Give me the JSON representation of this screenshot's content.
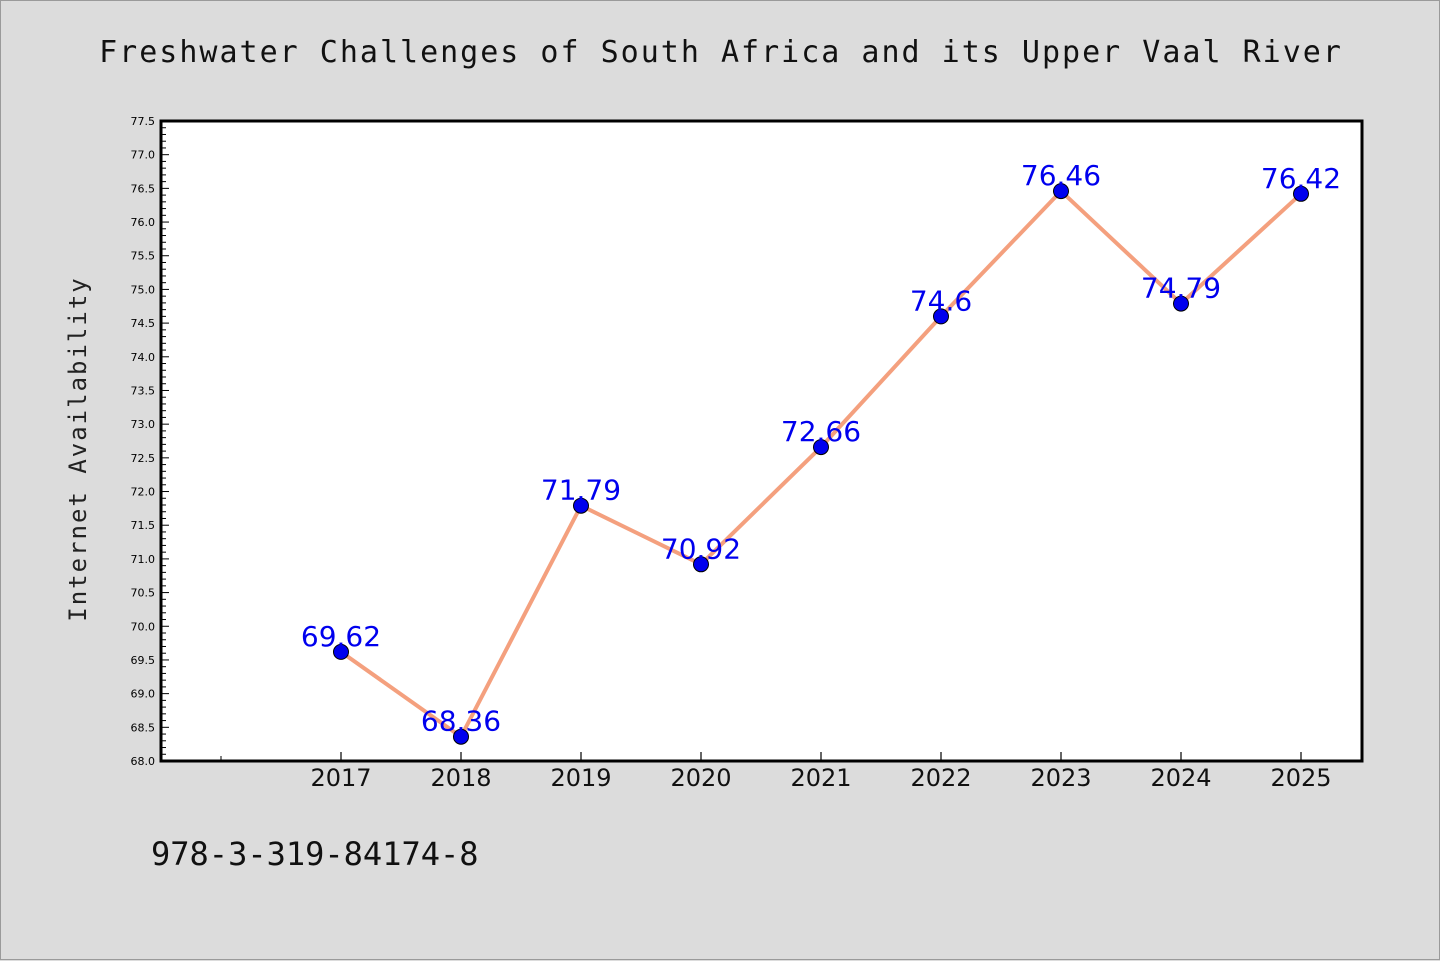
{
  "figure": {
    "title": "Freshwater Challenges of South Africa and its Upper Vaal River",
    "footer_code": "978-3-319-84174-8"
  },
  "chart_data": {
    "type": "line",
    "title": "Freshwater Challenges of South Africa and its Upper Vaal River",
    "xlabel": "",
    "ylabel": "Internet Availability",
    "categories": [
      "2017",
      "2018",
      "2019",
      "2020",
      "2021",
      "2022",
      "2023",
      "2024",
      "2025"
    ],
    "series": [
      {
        "values": [
          69.62,
          68.36,
          71.79,
          70.92,
          72.66,
          74.6,
          76.46,
          74.79,
          76.42
        ],
        "data_labels": [
          "69.62",
          "68.36",
          "71.79",
          "70.92",
          "72.66",
          "74.6",
          "76.46",
          "74.79",
          "76.42"
        ]
      }
    ],
    "ylim": [
      68.0,
      77.5
    ],
    "yticks": [
      "68.0",
      "68.5",
      "69.0",
      "69.5",
      "70.0",
      "70.5",
      "71.0",
      "71.5",
      "72.0",
      "72.5",
      "73.0",
      "73.5",
      "74.0",
      "74.5",
      "75.0",
      "75.5",
      "76.0",
      "76.5",
      "77.0",
      "77.5"
    ],
    "grid": false,
    "legend": "none",
    "colors": {
      "line": "#f4a07e",
      "marker": "#0000ee",
      "data_label": "#0000ee",
      "background": "#dcdcdc",
      "plot_area": "#ffffff"
    }
  }
}
